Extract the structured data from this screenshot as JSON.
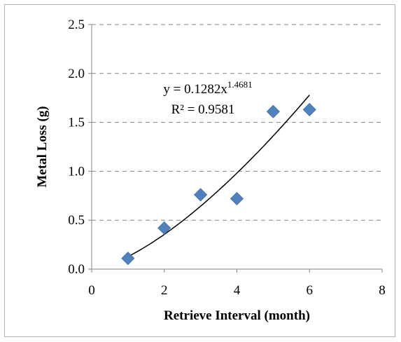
{
  "chart_data": {
    "type": "scatter",
    "title": "",
    "xlabel": "Retrieve Interval (month)",
    "ylabel": "Metal Loss (g)",
    "xlim": [
      0,
      8
    ],
    "ylim": [
      0,
      2.5
    ],
    "x_ticks": [
      "0",
      "2",
      "4",
      "6",
      "8"
    ],
    "y_ticks": [
      "0.0",
      "0.5",
      "1.0",
      "1.5",
      "2.0",
      "2.5"
    ],
    "grid": "horizontal dashed",
    "series": [
      {
        "x": [
          1,
          2,
          3,
          4,
          5,
          6
        ],
        "y": [
          0.11,
          0.42,
          0.76,
          0.72,
          1.61,
          1.63
        ],
        "marker": "diamond",
        "color": "#4f81bd"
      }
    ],
    "trendline": {
      "type": "power",
      "coefficient": 0.1282,
      "exponent": 1.4681,
      "x_range": [
        1,
        6
      ],
      "color": "#000000",
      "equation_prefix": "y = 0.1282x",
      "equation_exponent": "1.4681",
      "r_squared_text": "R² = 0.9581"
    }
  }
}
